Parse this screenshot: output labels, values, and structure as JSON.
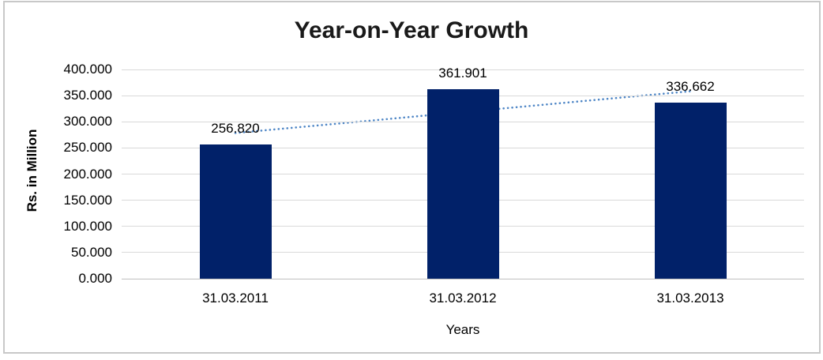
{
  "chart_data": {
    "type": "bar",
    "title": "Year-on-Year Growth",
    "xlabel": "Years",
    "ylabel": "Rs. in Million",
    "categories": [
      "31.03.2011",
      "31.03.2012",
      "31.03.2013"
    ],
    "values": [
      256.82,
      361.901,
      336.662
    ],
    "data_labels": [
      "256.820",
      "361.901",
      "336.662"
    ],
    "y_axis": {
      "values": [
        0,
        50,
        100,
        150,
        200,
        250,
        300,
        350,
        400
      ],
      "labels": [
        "0.000",
        "50.000",
        "100.000",
        "150.000",
        "200.000",
        "250.000",
        "300.000",
        "350.000",
        "400.000"
      ]
    },
    "ylim": [
      0,
      400
    ],
    "grid": "horizontal",
    "legend": "none",
    "trendline": {
      "type": "linear",
      "style": "dotted",
      "endpoints": [
        278.5,
        358.4
      ]
    },
    "colors": {
      "bar": "#012169",
      "trendline": "#4e86c6",
      "gridline": "#d9d9d9",
      "axis_line": "#c0c0c0",
      "text": "#000000",
      "frame_border": "#c8c8c8",
      "background": "#ffffff"
    }
  }
}
